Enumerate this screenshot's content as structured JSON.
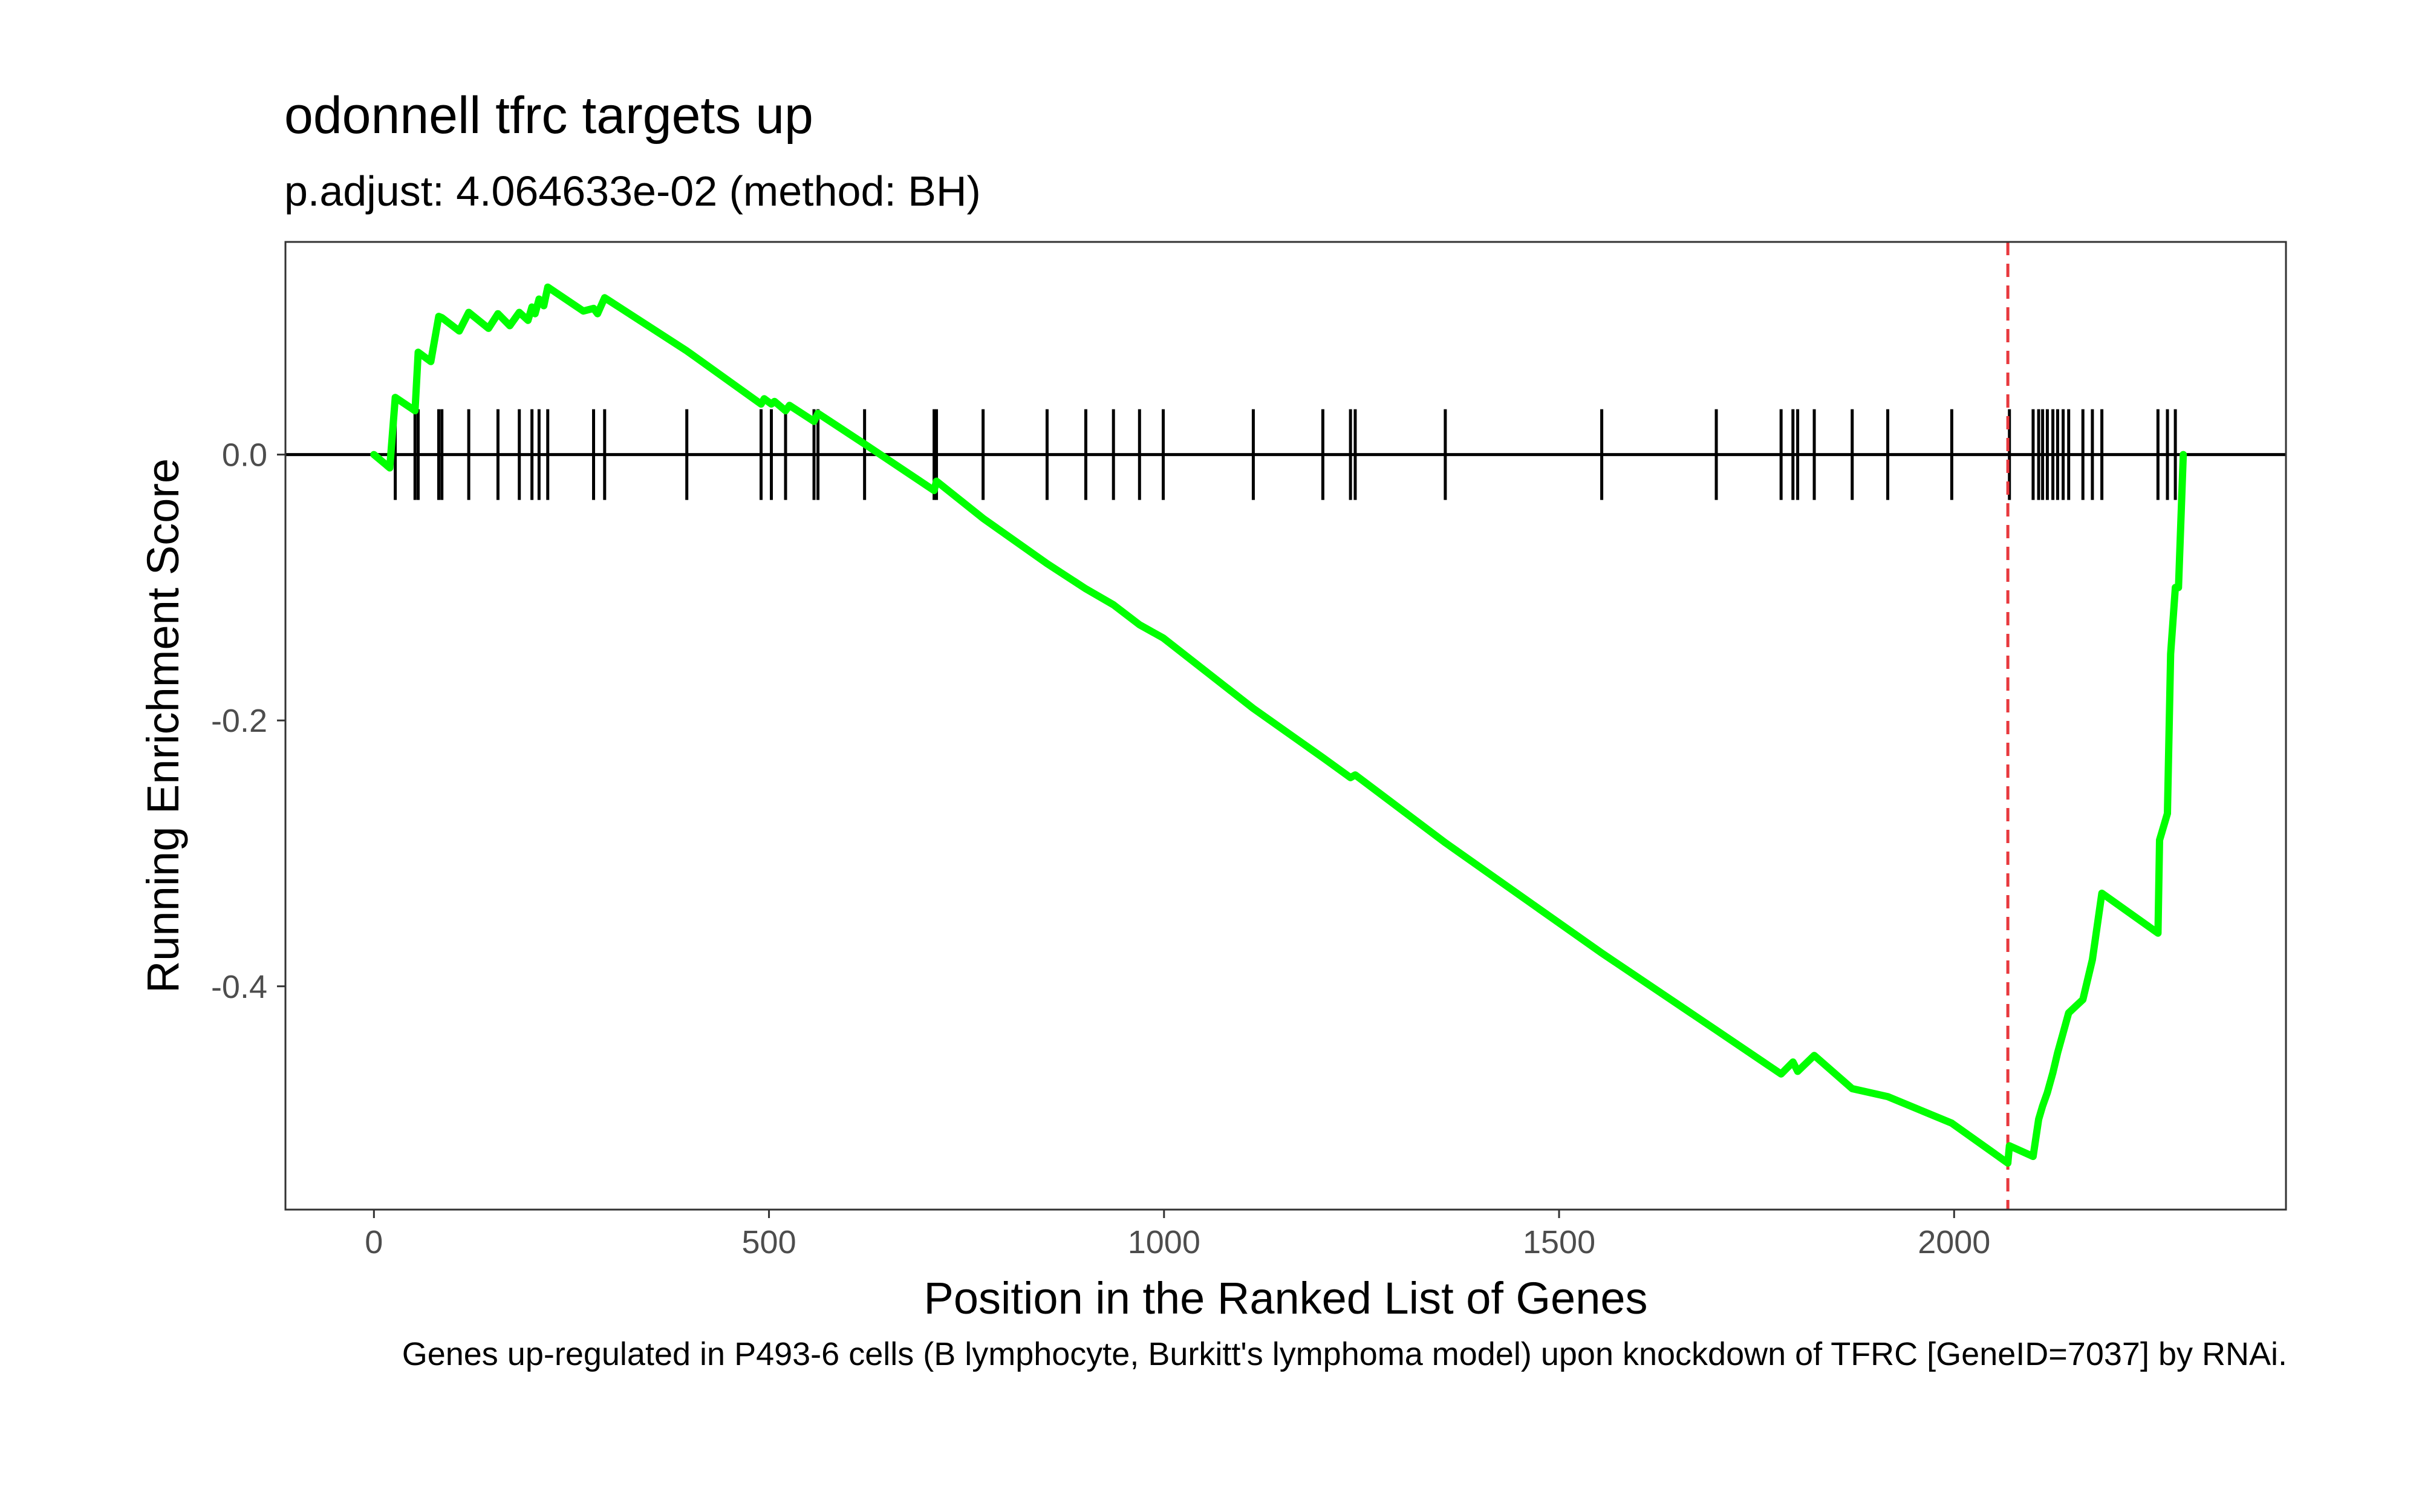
{
  "chart_data": {
    "type": "line",
    "title": "odonnell tfrc targets up",
    "subtitle": "p.adjust: 4.064633e-02 (method: BH)",
    "xlabel": "Position in the Ranked List of Genes",
    "ylabel": "Running Enrichment Score",
    "caption": "Genes up-regulated in P493-6 cells (B lymphocyte, Burkitt's lymphoma model) upon knockdown of TFRC [GeneID=7037] by RNAi.",
    "xlim": [
      -112,
      2420
    ],
    "ylim": [
      -0.568,
      0.16
    ],
    "x_ticks": [
      0,
      500,
      1000,
      1500,
      2000
    ],
    "x_tick_labels": [
      "0",
      "500",
      "1000",
      "1500",
      "2000"
    ],
    "y_ticks": [
      0.0,
      -0.2,
      -0.4
    ],
    "y_tick_labels": [
      "0.0",
      "-0.2",
      "-0.4"
    ],
    "grid": false,
    "line_color": "#00ff00",
    "max_deviation_position": 2068,
    "max_deviation_line_color": "#e8383d",
    "hit_positions": [
      27,
      52,
      56,
      82,
      86,
      120,
      157,
      184,
      200,
      209,
      220,
      278,
      292,
      396,
      490,
      503,
      521,
      557,
      562,
      621,
      709,
      712,
      771,
      852,
      901,
      936,
      969,
      999,
      1113,
      1201,
      1236,
      1242,
      1356,
      1554,
      1699,
      1781,
      1796,
      1802,
      1823,
      1871,
      1916,
      1997,
      2070,
      2100,
      2107,
      2112,
      2118,
      2125,
      2131,
      2138,
      2145,
      2163,
      2175,
      2187,
      2258,
      2270,
      2280
    ],
    "series": [
      {
        "x": [
          0,
          20,
          27,
          52,
          56,
          72,
          82,
          86,
          108,
          120,
          145,
          157,
          172,
          184,
          195,
          200,
          204,
          209,
          215,
          220,
          265,
          278,
          283,
          292,
          396,
          490,
          494,
          503,
          507,
          521,
          526,
          557,
          562,
          621,
          709,
          712,
          771,
          852,
          901,
          936,
          969,
          999,
          1113,
          1201,
          1236,
          1242,
          1356,
          1554,
          1699,
          1781,
          1796,
          1802,
          1823,
          1871,
          1916,
          1997,
          2068,
          2070,
          2100,
          2107,
          2112,
          2118,
          2125,
          2131,
          2138,
          2145,
          2163,
          2175,
          2187,
          2258,
          2260,
          2270,
          2274,
          2280,
          2284,
          2290
        ],
        "y": [
          0.0,
          -0.01,
          0.043,
          0.033,
          0.077,
          0.07,
          0.104,
          0.103,
          0.093,
          0.107,
          0.095,
          0.106,
          0.097,
          0.107,
          0.101,
          0.111,
          0.106,
          0.117,
          0.112,
          0.126,
          0.108,
          0.11,
          0.106,
          0.118,
          0.078,
          0.038,
          0.042,
          0.038,
          0.04,
          0.033,
          0.037,
          0.025,
          0.031,
          0.008,
          -0.027,
          -0.02,
          -0.048,
          -0.082,
          -0.101,
          -0.113,
          -0.128,
          -0.138,
          -0.191,
          -0.228,
          -0.243,
          -0.241,
          -0.292,
          -0.375,
          -0.433,
          -0.466,
          -0.457,
          -0.464,
          -0.452,
          -0.477,
          -0.483,
          -0.503,
          -0.533,
          -0.52,
          -0.528,
          -0.5,
          -0.49,
          -0.48,
          -0.465,
          -0.45,
          -0.435,
          -0.42,
          -0.41,
          -0.38,
          -0.33,
          -0.36,
          -0.29,
          -0.27,
          -0.15,
          -0.1,
          -0.1,
          0.0
        ]
      }
    ]
  }
}
